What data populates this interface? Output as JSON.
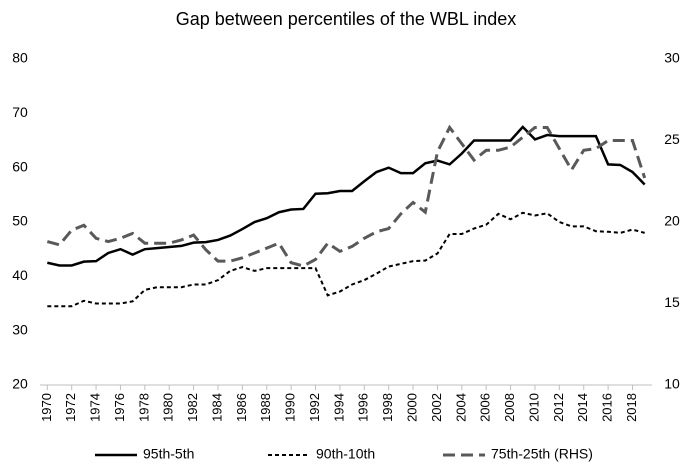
{
  "chart_data": {
    "type": "line",
    "title": "Gap between percentiles of the WBL index",
    "x": [
      1970,
      1971,
      1972,
      1973,
      1974,
      1975,
      1976,
      1977,
      1978,
      1979,
      1980,
      1981,
      1982,
      1983,
      1984,
      1985,
      1986,
      1987,
      1988,
      1989,
      1990,
      1991,
      1992,
      1993,
      1994,
      1995,
      1996,
      1997,
      1998,
      1999,
      2000,
      2001,
      2002,
      2003,
      2004,
      2005,
      2006,
      2007,
      2008,
      2009,
      2010,
      2011,
      2012,
      2013,
      2014,
      2015,
      2016,
      2017,
      2018,
      2019
    ],
    "xlim": [
      1969.4,
      2019.6
    ],
    "xticks": [
      1970,
      1972,
      1974,
      1976,
      1978,
      1980,
      1982,
      1984,
      1986,
      1988,
      1990,
      1992,
      1994,
      1996,
      1998,
      2000,
      2002,
      2004,
      2006,
      2008,
      2010,
      2012,
      2014,
      2016,
      2018
    ],
    "ylim": [
      20,
      80
    ],
    "yticks": [
      20,
      30,
      40,
      50,
      60,
      70,
      80
    ],
    "y2lim": [
      10,
      30
    ],
    "y2ticks": [
      10,
      15,
      20,
      25,
      30
    ],
    "legend": "bottom",
    "series": [
      {
        "name": "95th-5th",
        "color": "#000000",
        "style": "solid",
        "values": [
          42.5,
          42,
          42,
          42.7,
          42.8,
          44.3,
          45,
          44,
          45,
          45.2,
          45.4,
          45.6,
          46.2,
          46.3,
          46.7,
          47.5,
          48.7,
          50,
          50.7,
          51.8,
          52.3,
          52.4,
          55.2,
          55.3,
          55.7,
          55.7,
          57.5,
          59.2,
          60,
          59,
          59,
          60.8,
          61.3,
          60.6,
          62.6,
          65,
          65,
          65,
          65,
          67.5,
          65.2,
          66,
          65.8,
          65.8,
          65.8,
          65.8,
          60.6,
          60.5,
          59.2,
          56.9
        ]
      },
      {
        "name": "90th-10th",
        "color": "#000000",
        "style": "dotted",
        "values": [
          34.5,
          34.5,
          34.5,
          35.5,
          35,
          35,
          35,
          35.4,
          37.5,
          38,
          38,
          38,
          38.5,
          38.5,
          39.3,
          41,
          41.7,
          41,
          41.5,
          41.5,
          41.5,
          41.5,
          41.5,
          36.5,
          37.2,
          38.5,
          39.3,
          40.5,
          41.8,
          42.3,
          42.8,
          42.9,
          44.2,
          47.8,
          47.8,
          48.8,
          49.5,
          51.5,
          50.5,
          51.7,
          51.2,
          51.6,
          50,
          49.2,
          49.2,
          48.3,
          48.2,
          48,
          48.6,
          48
        ]
      },
      {
        "name": "75th-25th (RHS)",
        "color": "#595959",
        "style": "dashed",
        "axis": "y2",
        "values": [
          18.8,
          18.6,
          19.5,
          19.8,
          19,
          18.8,
          19,
          19.3,
          18.7,
          18.7,
          18.7,
          18.9,
          19.2,
          18.3,
          17.6,
          17.6,
          17.8,
          18.1,
          18.4,
          18.7,
          17.5,
          17.3,
          17.7,
          18.7,
          18.2,
          18.5,
          19,
          19.4,
          19.6,
          20.5,
          21.2,
          20.6,
          24.3,
          25.8,
          24.8,
          23.8,
          24.4,
          24.4,
          24.6,
          25.2,
          25.8,
          25.8,
          24.5,
          23.2,
          24.4,
          24.5,
          25,
          25,
          25,
          22.7
        ]
      }
    ]
  }
}
